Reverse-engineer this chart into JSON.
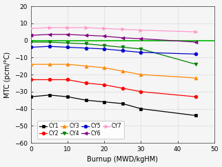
{
  "burnup": [
    0,
    5,
    10,
    15,
    20,
    25,
    30,
    45
  ],
  "CY1": {
    "values": [
      -33,
      -32,
      -33,
      -35,
      -36,
      -37,
      -40,
      -44
    ],
    "color": "#000000",
    "marker": "s",
    "label": "CY1"
  },
  "CY2": {
    "values": [
      -23,
      -23,
      -23,
      -25,
      -26,
      -28,
      -30,
      -33
    ],
    "color": "#ff0000",
    "marker": "o",
    "label": "CY2"
  },
  "CY3": {
    "values": [
      -14,
      -14,
      -14,
      -15,
      -16,
      -18,
      -20,
      -22
    ],
    "color": "#ff8800",
    "marker": "^",
    "label": "CY3"
  },
  "CY4": {
    "values": [
      -1,
      -1,
      -1.5,
      -2,
      -3,
      -4,
      -5,
      -14
    ],
    "color": "#008000",
    "marker": "v",
    "label": "CY4"
  },
  "CY5": {
    "values": [
      -4,
      -3.5,
      -4,
      -4.5,
      -5,
      -6,
      -7,
      -8
    ],
    "color": "#0000cc",
    "marker": "o",
    "label": "CY5"
  },
  "CY6": {
    "values": [
      3,
      3.5,
      3.5,
      3,
      2.5,
      1.5,
      1,
      -1
    ],
    "color": "#800080",
    "marker": "<",
    "label": "CY6"
  },
  "CY7": {
    "values": [
      7,
      7.5,
      7.5,
      7.5,
      7,
      6.5,
      6,
      5
    ],
    "color": "#ff99cc",
    "marker": ">",
    "label": "CY7"
  },
  "ylim": [
    -60,
    20
  ],
  "xlim": [
    0,
    50
  ],
  "yticks": [
    -60,
    -50,
    -40,
    -30,
    -20,
    -10,
    0,
    10,
    20
  ],
  "xticks": [
    0,
    10,
    20,
    30,
    40,
    50
  ],
  "xlabel": "Burnup (MWD/kgHM)",
  "ylabel": "MTC (pcm/°C)",
  "grid_color": "#cccccc",
  "background": "#f5f5f5",
  "zero_line_color": "#00bb00",
  "legend_order": [
    "CY1",
    "CY2",
    "CY3",
    "CY4",
    "CY5",
    "CY6",
    "CY7"
  ]
}
